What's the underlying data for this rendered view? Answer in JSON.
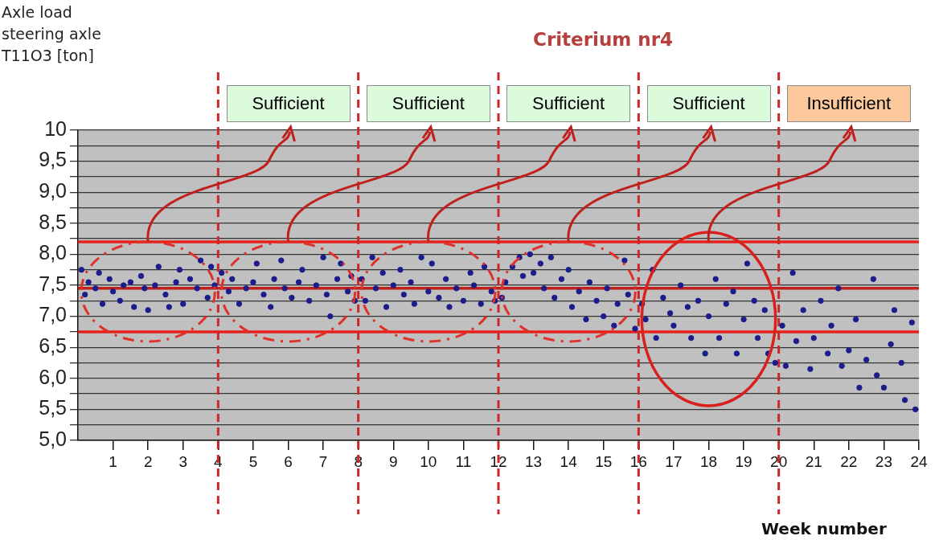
{
  "chart_data": {
    "type": "scatter",
    "title": "Criterium nr4",
    "ylabel": "Axle load steering axle T11O3 [ton]",
    "xlabel": "Week number",
    "xlim": [
      0,
      24
    ],
    "xticks": [
      1,
      2,
      3,
      4,
      5,
      6,
      7,
      8,
      9,
      10,
      11,
      12,
      13,
      14,
      15,
      16,
      17,
      18,
      19,
      20,
      21,
      22,
      23,
      24
    ],
    "ylim": [
      5,
      10
    ],
    "yticks": [
      {
        "value": 5,
        "label": "5,0"
      },
      {
        "value": 5.25,
        "label": null
      },
      {
        "value": 5.5,
        "label": "5,5"
      },
      {
        "value": 5.75,
        "label": null
      },
      {
        "value": 6,
        "label": "6,0"
      },
      {
        "value": 6.25,
        "label": null
      },
      {
        "value": 6.5,
        "label": "6,5"
      },
      {
        "value": 6.75,
        "label": null
      },
      {
        "value": 7,
        "label": "7,0"
      },
      {
        "value": 7.25,
        "label": null
      },
      {
        "value": 7.5,
        "label": "7,5"
      },
      {
        "value": 7.75,
        "label": null
      },
      {
        "value": 8,
        "label": "8,0"
      },
      {
        "value": 8.25,
        "label": null
      },
      {
        "value": 8.5,
        "label": "8,5"
      },
      {
        "value": 8.75,
        "label": null
      },
      {
        "value": 9,
        "label": "9,0"
      },
      {
        "value": 9.25,
        "label": null
      },
      {
        "value": 9.5,
        "label": "9,5"
      },
      {
        "value": 9.75,
        "label": null
      },
      {
        "value": 10,
        "label": "10"
      }
    ],
    "grid": "y",
    "legend": false,
    "marker": "circle",
    "series": [
      {
        "color": "#1c1c8c",
        "x": [
          0.1,
          0.2,
          0.3,
          0.5,
          0.6,
          0.7,
          0.9,
          1.0,
          1.2,
          1.3,
          1.5,
          1.6,
          1.8,
          1.9,
          2.0,
          2.2,
          2.3,
          2.5,
          2.6,
          2.8,
          2.9,
          3.0,
          3.2,
          3.4,
          3.5,
          3.7,
          3.8,
          3.9,
          4.1,
          4.3,
          4.4,
          4.6,
          4.8,
          5.0,
          5.1,
          5.3,
          5.5,
          5.6,
          5.8,
          5.9,
          6.1,
          6.3,
          6.4,
          6.6,
          6.8,
          7.0,
          7.1,
          7.2,
          7.4,
          7.5,
          7.7,
          7.8,
          7.9,
          8.1,
          8.2,
          8.4,
          8.5,
          8.7,
          8.8,
          9.0,
          9.2,
          9.3,
          9.5,
          9.6,
          9.8,
          10.0,
          10.1,
          10.3,
          10.5,
          10.6,
          10.8,
          11.0,
          11.2,
          11.3,
          11.5,
          11.6,
          11.8,
          11.9,
          12.1,
          12.2,
          12.4,
          12.6,
          12.7,
          12.9,
          13.0,
          13.2,
          13.3,
          13.5,
          13.6,
          13.8,
          14.0,
          14.1,
          14.3,
          14.5,
          14.6,
          14.8,
          15.0,
          15.1,
          15.3,
          15.4,
          15.6,
          15.7,
          15.9,
          16.1,
          16.2,
          16.4,
          16.5,
          16.7,
          16.9,
          17.0,
          17.2,
          17.4,
          17.5,
          17.7,
          17.9,
          18.0,
          18.2,
          18.3,
          18.5,
          18.7,
          18.8,
          19.0,
          19.1,
          19.3,
          19.4,
          19.6,
          19.7,
          19.9,
          20.1,
          20.2,
          20.4,
          20.5,
          20.7,
          20.9,
          21.0,
          21.2,
          21.4,
          21.5,
          21.7,
          21.8,
          22.0,
          22.2,
          22.3,
          22.5,
          22.7,
          22.8,
          23.0,
          23.2,
          23.3,
          23.5,
          23.6,
          23.8,
          23.9
        ],
        "values": [
          7.75,
          7.35,
          7.55,
          7.45,
          7.7,
          7.2,
          7.6,
          7.4,
          7.25,
          7.5,
          7.55,
          7.15,
          7.65,
          7.45,
          7.1,
          7.5,
          7.8,
          7.35,
          7.15,
          7.55,
          7.75,
          7.2,
          7.6,
          7.45,
          7.9,
          7.3,
          7.8,
          7.5,
          7.7,
          7.4,
          7.6,
          7.2,
          7.45,
          7.55,
          7.85,
          7.35,
          7.15,
          7.6,
          7.9,
          7.45,
          7.3,
          7.55,
          7.75,
          7.25,
          7.5,
          7.95,
          7.35,
          7.0,
          7.6,
          7.85,
          7.4,
          7.65,
          7.25,
          7.6,
          7.25,
          7.95,
          7.45,
          7.7,
          7.15,
          7.5,
          7.75,
          7.35,
          7.55,
          7.2,
          7.95,
          7.4,
          7.85,
          7.3,
          7.6,
          7.15,
          7.45,
          7.25,
          7.7,
          7.5,
          7.2,
          7.8,
          7.4,
          7.25,
          7.3,
          7.55,
          7.8,
          7.95,
          7.65,
          8.0,
          7.7,
          7.85,
          7.45,
          7.95,
          7.3,
          7.6,
          7.75,
          7.15,
          7.4,
          6.95,
          7.55,
          7.25,
          7.0,
          7.45,
          6.85,
          7.2,
          7.9,
          7.35,
          6.8,
          7.2,
          6.95,
          7.75,
          6.65,
          7.3,
          7.05,
          6.85,
          7.5,
          7.15,
          6.65,
          7.25,
          6.4,
          7.0,
          7.6,
          6.65,
          7.2,
          7.4,
          6.4,
          6.95,
          7.85,
          7.25,
          6.65,
          7.1,
          6.4,
          6.25,
          6.85,
          6.2,
          7.7,
          6.6,
          7.1,
          6.15,
          6.65,
          7.25,
          6.4,
          6.85,
          7.45,
          6.2,
          6.45,
          6.95,
          5.85,
          6.3,
          7.6,
          6.05,
          5.85,
          6.55,
          7.1,
          6.25,
          5.65,
          6.9,
          5.5
        ]
      }
    ],
    "ref_lines": [
      {
        "axis": "y",
        "value": 8.2,
        "color": "#e8201c"
      },
      {
        "axis": "y",
        "value": 7.45,
        "color": "#c0201c"
      },
      {
        "axis": "y",
        "value": 6.75,
        "color": "#e8201c"
      },
      {
        "axis": "x",
        "value": 4,
        "color": "#c8282a",
        "line_style": "dashed"
      },
      {
        "axis": "x",
        "value": 8,
        "color": "#c8282a",
        "line_style": "dashed"
      },
      {
        "axis": "x",
        "value": 12,
        "color": "#c8282a",
        "line_style": "dashed"
      },
      {
        "axis": "x",
        "value": 16,
        "color": "#c8282a",
        "line_style": "dashed"
      },
      {
        "axis": "x",
        "value": 20,
        "color": "#c8282a",
        "line_style": "dashed"
      }
    ],
    "annotations": [
      {
        "text": "Sufficient",
        "x": 2,
        "y": 8.2
      },
      {
        "text": "Sufficient",
        "x": 6,
        "y": 8.2
      },
      {
        "text": "Sufficient",
        "x": 10,
        "y": 8.2
      },
      {
        "text": "Sufficient",
        "x": 14,
        "y": 8.2
      },
      {
        "text": "Insufficient",
        "x": 18,
        "y": 8.2
      }
    ]
  }
}
